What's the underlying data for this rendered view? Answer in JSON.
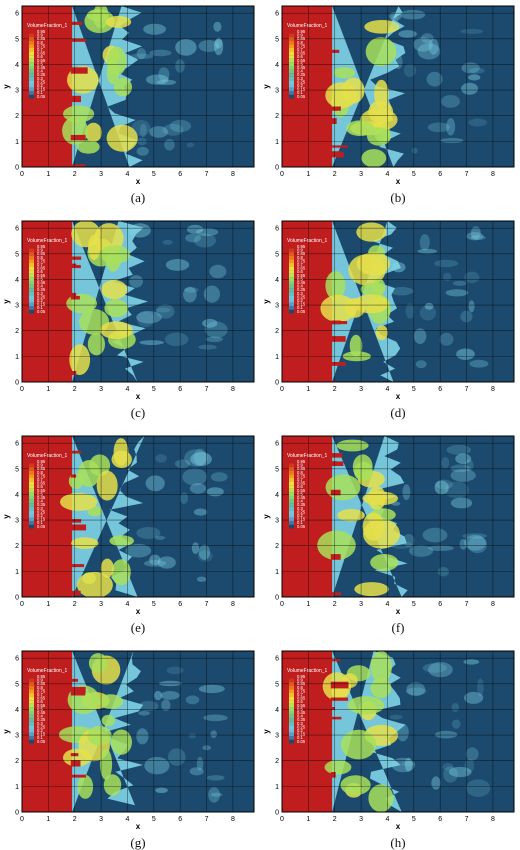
{
  "colors": {
    "red": "#c01e1e",
    "dark_blue": "#1c4a6e",
    "cyan": "#7fd4e6",
    "green": "#a8e05a",
    "yellow": "#e6e04a",
    "orange": "#e89a2e",
    "grid": "#000000"
  },
  "chart_data": [
    {
      "type": "heatmap",
      "panel": "a",
      "caption": "(a)",
      "xlabel": "x",
      "ylabel": "y",
      "xlim": [
        0,
        8.8
      ],
      "ylim": [
        0,
        6.28
      ],
      "xticks": [
        "0",
        "1",
        "2",
        "3",
        "4",
        "5",
        "6",
        "7",
        "8"
      ],
      "yticks": [
        "0",
        "1",
        "2",
        "3",
        "4",
        "5",
        "6"
      ],
      "legend": {
        "title": "VolumeFraction_1",
        "position": "top-left",
        "levels": [
          "0.95",
          "0.9",
          "0.85",
          "0.8",
          "0.75",
          "0.7",
          "0.65",
          "0.6",
          "0.55",
          "0.5",
          "0.45",
          "0.4",
          "0.35",
          "0.3",
          "0.25",
          "0.2",
          "0.15",
          "0.1",
          "0.05"
        ]
      }
    },
    {
      "type": "heatmap",
      "panel": "b",
      "caption": "(b)",
      "xlabel": "x",
      "ylabel": "y",
      "xlim": [
        0,
        8.8
      ],
      "ylim": [
        0,
        6.28
      ],
      "xticks": [
        "0",
        "1",
        "2",
        "3",
        "4",
        "5",
        "6",
        "7",
        "8"
      ],
      "yticks": [
        "0",
        "1",
        "2",
        "3",
        "4",
        "5",
        "6"
      ],
      "legend": {
        "title": "VolumeFraction_1",
        "position": "top-left",
        "levels": [
          "0.95",
          "0.9",
          "0.85",
          "0.8",
          "0.75",
          "0.7",
          "0.65",
          "0.6",
          "0.55",
          "0.5",
          "0.45",
          "0.4",
          "0.35",
          "0.3",
          "0.25",
          "0.2",
          "0.15",
          "0.1",
          "0.05"
        ]
      }
    },
    {
      "type": "heatmap",
      "panel": "c",
      "caption": "(c)",
      "xlabel": "x",
      "ylabel": "y",
      "xlim": [
        0,
        8.8
      ],
      "ylim": [
        0,
        6.28
      ],
      "xticks": [
        "0",
        "1",
        "2",
        "3",
        "4",
        "5",
        "6",
        "7",
        "8"
      ],
      "yticks": [
        "0",
        "1",
        "2",
        "3",
        "4",
        "5",
        "6"
      ],
      "legend": {
        "title": "VolumeFraction_1",
        "position": "top-left",
        "levels": [
          "0.95",
          "0.9",
          "0.85",
          "0.8",
          "0.75",
          "0.7",
          "0.65",
          "0.6",
          "0.55",
          "0.5",
          "0.45",
          "0.4",
          "0.35",
          "0.3",
          "0.25",
          "0.2",
          "0.15",
          "0.1",
          "0.05"
        ]
      }
    },
    {
      "type": "heatmap",
      "panel": "d",
      "caption": "(d)",
      "xlabel": "x",
      "ylabel": "y",
      "xlim": [
        0,
        8.8
      ],
      "ylim": [
        0,
        6.28
      ],
      "xticks": [
        "0",
        "1",
        "2",
        "3",
        "4",
        "5",
        "6",
        "7",
        "8"
      ],
      "yticks": [
        "0",
        "1",
        "2",
        "3",
        "4",
        "5",
        "6"
      ],
      "legend": {
        "title": "VolumeFraction_1",
        "position": "top-left",
        "levels": [
          "0.95",
          "0.9",
          "0.85",
          "0.8",
          "0.75",
          "0.7",
          "0.65",
          "0.6",
          "0.55",
          "0.5",
          "0.45",
          "0.4",
          "0.35",
          "0.3",
          "0.25",
          "0.2",
          "0.15",
          "0.1",
          "0.05"
        ]
      }
    },
    {
      "type": "heatmap",
      "panel": "e",
      "caption": "(e)",
      "xlabel": "x",
      "ylabel": "y",
      "xlim": [
        0,
        8.8
      ],
      "ylim": [
        0,
        6.28
      ],
      "xticks": [
        "0",
        "1",
        "2",
        "3",
        "4",
        "5",
        "6",
        "7",
        "8"
      ],
      "yticks": [
        "0",
        "1",
        "2",
        "3",
        "4",
        "5",
        "6"
      ],
      "legend": {
        "title": "VolumeFraction_1",
        "position": "top-left",
        "levels": [
          "0.95",
          "0.9",
          "0.85",
          "0.8",
          "0.75",
          "0.7",
          "0.65",
          "0.6",
          "0.55",
          "0.5",
          "0.45",
          "0.4",
          "0.35",
          "0.3",
          "0.25",
          "0.2",
          "0.15",
          "0.1",
          "0.05"
        ]
      }
    },
    {
      "type": "heatmap",
      "panel": "f",
      "caption": "(f)",
      "xlabel": "x",
      "ylabel": "y",
      "xlim": [
        0,
        8.8
      ],
      "ylim": [
        0,
        6.28
      ],
      "xticks": [
        "0",
        "1",
        "2",
        "3",
        "4",
        "5",
        "6",
        "7",
        "8"
      ],
      "yticks": [
        "0",
        "1",
        "2",
        "3",
        "4",
        "5",
        "6"
      ],
      "legend": {
        "title": "VolumeFraction_1",
        "position": "top-left",
        "levels": [
          "0.95",
          "0.9",
          "0.85",
          "0.8",
          "0.75",
          "0.7",
          "0.65",
          "0.6",
          "0.55",
          "0.5",
          "0.45",
          "0.4",
          "0.35",
          "0.3",
          "0.25",
          "0.2",
          "0.15",
          "0.1",
          "0.05"
        ]
      }
    },
    {
      "type": "heatmap",
      "panel": "g",
      "caption": "(g)",
      "xlabel": "x",
      "ylabel": "y",
      "xlim": [
        0,
        8.8
      ],
      "ylim": [
        0,
        6.28
      ],
      "xticks": [
        "0",
        "1",
        "2",
        "3",
        "4",
        "5",
        "6",
        "7",
        "8"
      ],
      "yticks": [
        "0",
        "1",
        "2",
        "3",
        "4",
        "5",
        "6"
      ],
      "legend": {
        "title": "VolumeFraction_1",
        "position": "top-left",
        "levels": [
          "0.95",
          "0.9",
          "0.85",
          "0.8",
          "0.75",
          "0.7",
          "0.65",
          "0.6",
          "0.55",
          "0.5",
          "0.45",
          "0.4",
          "0.35",
          "0.3",
          "0.25",
          "0.2",
          "0.15",
          "0.1",
          "0.05"
        ]
      }
    },
    {
      "type": "heatmap",
      "panel": "h",
      "caption": "(h)",
      "xlabel": "x",
      "ylabel": "y",
      "xlim": [
        0,
        8.8
      ],
      "ylim": [
        0,
        6.28
      ],
      "xticks": [
        "0",
        "1",
        "2",
        "3",
        "4",
        "5",
        "6",
        "7",
        "8"
      ],
      "yticks": [
        "0",
        "1",
        "2",
        "3",
        "4",
        "5",
        "6"
      ],
      "legend": {
        "title": "VolumeFraction_1",
        "position": "top-left",
        "levels": [
          "0.95",
          "0.9",
          "0.85",
          "0.8",
          "0.75",
          "0.7",
          "0.65",
          "0.6",
          "0.55",
          "0.5",
          "0.45",
          "0.4",
          "0.35",
          "0.3",
          "0.25",
          "0.2",
          "0.15",
          "0.1",
          "0.05"
        ]
      }
    }
  ]
}
